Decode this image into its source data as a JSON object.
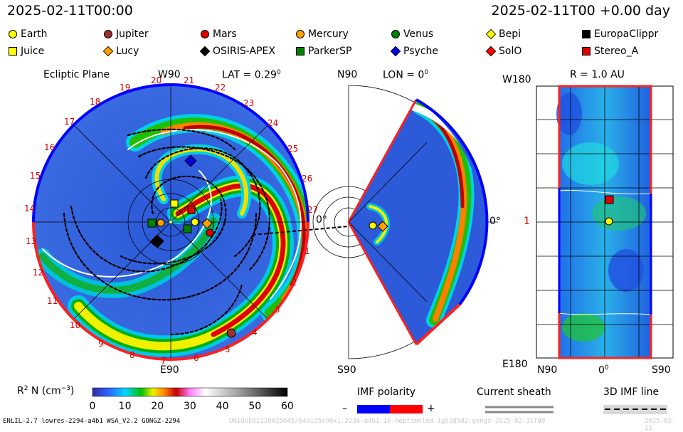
{
  "header": {
    "left_time": "2025-02-11T00:00",
    "right_time": "2025-02-11T00 +0.00 day"
  },
  "legend": [
    {
      "name": "Earth",
      "shape": "circle",
      "color": "#ffff00"
    },
    {
      "name": "Jupiter",
      "shape": "circle",
      "color": "#a03030"
    },
    {
      "name": "Mars",
      "shape": "circle",
      "color": "#e00000"
    },
    {
      "name": "Mercury",
      "shape": "circle",
      "color": "#ffa000"
    },
    {
      "name": "Venus",
      "shape": "circle",
      "color": "#008000"
    },
    {
      "name": "Bepi",
      "shape": "diamond",
      "color": "#ffff00"
    },
    {
      "name": "EuropaClippr",
      "shape": "square",
      "color": "#000000"
    },
    {
      "name": "Juice",
      "shape": "square",
      "color": "#ffff00"
    },
    {
      "name": "Lucy",
      "shape": "diamond",
      "color": "#ffa000"
    },
    {
      "name": "OSIRIS-APEX",
      "shape": "diamond",
      "color": "#000000"
    },
    {
      "name": "ParkerSP",
      "shape": "square",
      "color": "#008000"
    },
    {
      "name": "Psyche",
      "shape": "diamond",
      "color": "#0000e0"
    },
    {
      "name": "SolO",
      "shape": "diamond",
      "color": "#ff0000"
    },
    {
      "name": "Stereo_A",
      "shape": "square",
      "color": "#e00000"
    }
  ],
  "ecliptic": {
    "title": "Ecliptic Plane",
    "top_label": "W90",
    "lat_label": "LAT = 0.29",
    "degree_mark": "0",
    "right_label": "0°",
    "bottom_label": "E90",
    "numbers": [
      "20",
      "21",
      "22",
      "19",
      "23",
      "18",
      "24",
      "17",
      "25",
      "16",
      "26",
      "15",
      "27",
      "14",
      "13",
      "12",
      "11",
      "10",
      "9",
      "8",
      "7",
      "6",
      "5",
      "4",
      "3",
      "2",
      "1"
    ]
  },
  "meridional": {
    "top_label": "N90",
    "lon_label": "LON = 0",
    "degree_mark": "0",
    "right_label": "0°",
    "bottom_label": "S90"
  },
  "radial": {
    "title": "R = 1.0 AU",
    "top_left": "W180",
    "left_mid": "1",
    "bottom_left": "E180",
    "axis_left": "N90",
    "axis_mid": "0",
    "axis_mid_sup": "0",
    "axis_right": "S90"
  },
  "colorbar": {
    "label": "R",
    "label_sup": "2",
    "label_rest": " N (cm",
    "label_sup2": "−3",
    "label_end": ")",
    "ticks": [
      "0",
      "10",
      "20",
      "30",
      "40",
      "50",
      "60"
    ]
  },
  "imf": {
    "title": "IMF polarity",
    "minus": "–",
    "plus": "+",
    "neg_color": "#0000ff",
    "pos_color": "#ff0000"
  },
  "sheath": {
    "title": "Current sheath"
  },
  "imf3d": {
    "title": "3D IMF line"
  },
  "footer": {
    "left": "ENLIL-2.7 lowres-2294-a4b1 WSA_V2.2 GONGZ-2294",
    "middle": "UNIQUE02120025645/64a135x90x1.2234-a4b1.16-noptimnled-1g53d5d2.gongz-2025-02-11T00",
    "right": "2025-02-11"
  }
}
